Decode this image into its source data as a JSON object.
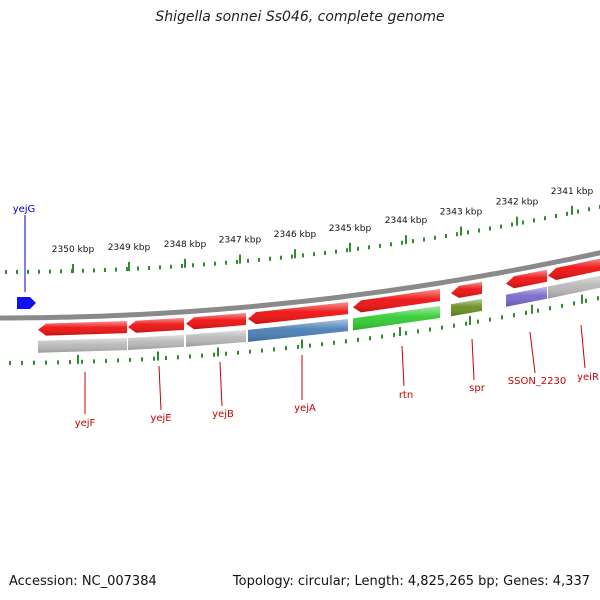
{
  "title": "Shigella sonnei Ss046, complete genome",
  "footer": {
    "accession": "Accession: NC_007384",
    "summary": "Topology: circular; Length: 4,825,265 bp; Genes: 4,337"
  },
  "colors": {
    "backbone": "#8a8a8a",
    "ticks": "#2e8b2e",
    "gene_red": "#ee1111",
    "label_red": "#cc0000",
    "label_blue": "#0000cc",
    "forward_gene": "#1111ee"
  },
  "ruler": {
    "unit": "kbp",
    "ticks": [
      {
        "kbp": 2350,
        "label": "2350 kbp"
      },
      {
        "kbp": 2349,
        "label": "2349 kbp"
      },
      {
        "kbp": 2348,
        "label": "2348 kbp"
      },
      {
        "kbp": 2347,
        "label": "2347 kbp"
      },
      {
        "kbp": 2346,
        "label": "2346 kbp"
      },
      {
        "kbp": 2345,
        "label": "2345 kbp"
      },
      {
        "kbp": 2344,
        "label": "2344 kbp"
      },
      {
        "kbp": 2343,
        "label": "2343 kbp"
      },
      {
        "kbp": 2342,
        "label": "2342 kbp"
      },
      {
        "kbp": 2341,
        "label": "2341 kbp"
      }
    ]
  },
  "genes": [
    {
      "name": "yejG",
      "strand": "forward",
      "color": "#1111ee"
    },
    {
      "name": "yejF",
      "strand": "reverse",
      "color": "#ee1111",
      "feature_color": "#b8b8b8"
    },
    {
      "name": "yejE",
      "strand": "reverse",
      "color": "#ee1111",
      "feature_color": "#b8b8b8"
    },
    {
      "name": "yejB",
      "strand": "reverse",
      "color": "#ee1111",
      "feature_color": "#b8b8b8"
    },
    {
      "name": "yejA",
      "strand": "reverse",
      "color": "#ee1111",
      "feature_color": "#4a7fb5"
    },
    {
      "name": "rtn",
      "strand": "reverse",
      "color": "#ee1111",
      "feature_color": "#33cc33"
    },
    {
      "name": "spr",
      "strand": "reverse",
      "color": "#ee1111",
      "feature_color": "#6b8e23"
    },
    {
      "name": "SSON_2230",
      "strand": "reverse",
      "color": "#ee1111",
      "feature_color": "#7b68cc"
    },
    {
      "name": "yeiR",
      "strand": "reverse",
      "color": "#ee1111",
      "feature_color": "#b8b8b8"
    }
  ]
}
